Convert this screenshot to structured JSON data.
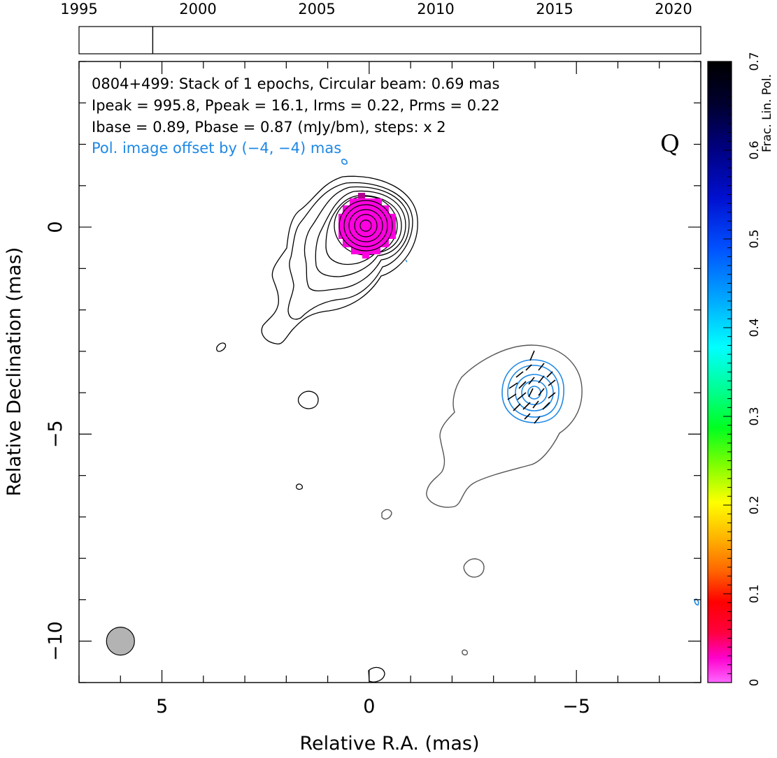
{
  "chart_data": {
    "type": "contour_map",
    "source": "0804+499",
    "header_lines": [
      "0804+499: Stack of 1 epochs, Circular beam: 0.69 mas",
      "Ipeak = 995.8, Ppeak = 16.1, Irms = 0.22, Prms = 0.22",
      "Ibase = 0.89, Pbase = 0.87 (mJy/bm), steps: x 2"
    ],
    "pol_offset_note": "Pol. image offset by (−4, −4) mas",
    "band_label": "Q",
    "xlabel": "Relative R.A. (mas)",
    "ylabel": "Relative Declination (mas)",
    "xlim": [
      7,
      -8
    ],
    "ylim": [
      -11,
      4
    ],
    "x_ticks": [
      {
        "v": 5,
        "label": "5"
      },
      {
        "v": 0,
        "label": "0"
      },
      {
        "v": -5,
        "label": "−5"
      }
    ],
    "y_ticks": [
      {
        "v": 0,
        "label": "0"
      },
      {
        "v": -5,
        "label": "−5"
      },
      {
        "v": -10,
        "label": "−10"
      }
    ],
    "beam": {
      "ra": 6,
      "dec": -10,
      "diameter_mas": 0.69
    },
    "timeline": {
      "years": [
        "1995",
        "2000",
        "2005",
        "2010",
        "2015",
        "2020"
      ],
      "range": [
        1995,
        2021
      ],
      "epochs": [
        1998.1
      ]
    },
    "colorbar": {
      "label": "Frac. Lin. Pol.",
      "range": [
        0,
        0.7
      ],
      "ticks": [
        "0",
        "0.1",
        "0.2",
        "0.3",
        "0.4",
        "0.5",
        "0.6",
        "0.7"
      ]
    },
    "fractional_pol_core": {
      "ra": 0,
      "dec": 0,
      "value": 0.02
    },
    "colors": {
      "stokes_i_contours": "#000000",
      "pol_intensity_contour_outer": "#555555",
      "pol_contours": "#1e88e5",
      "pol_label": "#1e88e5",
      "evpa_ticks": "#000000",
      "core_fill": "#ff00e0",
      "beam_fill": "#b3b3b3"
    }
  }
}
